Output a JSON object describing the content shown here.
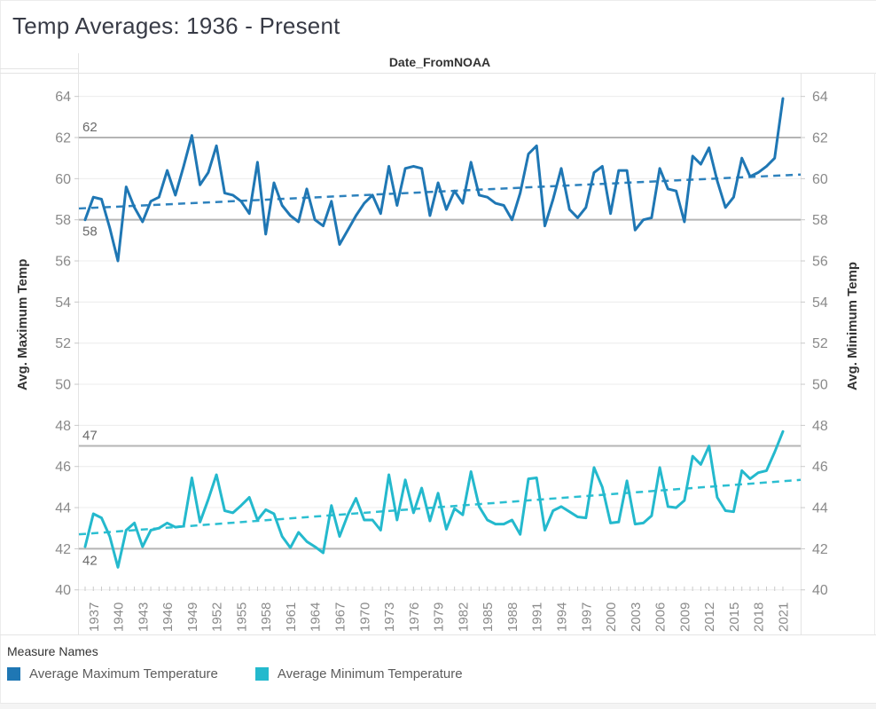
{
  "title": "Temp Averages: 1936 - Present",
  "column_header": "Date_FromNOAA",
  "axes": {
    "left_title": "Avg. Maximum Temp",
    "right_title": "Avg. Minimum Temp",
    "y_ticks": [
      64,
      62,
      60,
      58,
      56,
      54,
      52,
      50,
      48,
      46,
      44,
      42,
      40
    ],
    "x_tick_years": [
      1937,
      1940,
      1943,
      1946,
      1949,
      1952,
      1955,
      1958,
      1961,
      1964,
      1967,
      1970,
      1973,
      1976,
      1979,
      1982,
      1985,
      1988,
      1991,
      1994,
      1997,
      2000,
      2003,
      2006,
      2009,
      2012,
      2015,
      2018,
      2021
    ]
  },
  "reference_lines": [
    {
      "label": "62",
      "value": 62,
      "label_position": "above",
      "color": "#b5b5b5"
    },
    {
      "label": "58",
      "value": 58,
      "label_position": "below",
      "color": "#b5b5b5"
    },
    {
      "label": "47",
      "value": 47,
      "label_position": "above",
      "color": "#b5b5b5"
    },
    {
      "label": "42",
      "value": 42,
      "label_position": "below",
      "color": "#b5b5b5"
    }
  ],
  "legend": {
    "title": "Measure Names",
    "items": [
      {
        "label": "Average Maximum Temperature",
        "color": "#1f77b4"
      },
      {
        "label": "Average Minimum Temperature",
        "color": "#24b9cd"
      }
    ]
  },
  "chart_data": {
    "type": "line",
    "title": "Temp Averages: 1936 - Present",
    "xlabel": "Date_FromNOAA",
    "ylabel_left": "Avg. Maximum Temp",
    "ylabel_right": "Avg. Minimum Temp",
    "ylim": [
      40,
      64.7
    ],
    "x_tick_interval": 3,
    "grid": "horizontal",
    "legend_position": "bottom",
    "x": [
      1936,
      1937,
      1938,
      1939,
      1940,
      1941,
      1942,
      1943,
      1944,
      1945,
      1946,
      1947,
      1948,
      1949,
      1950,
      1951,
      1952,
      1953,
      1954,
      1955,
      1956,
      1957,
      1958,
      1959,
      1960,
      1961,
      1962,
      1963,
      1964,
      1965,
      1966,
      1967,
      1968,
      1969,
      1970,
      1971,
      1972,
      1973,
      1974,
      1975,
      1976,
      1977,
      1978,
      1979,
      1980,
      1981,
      1982,
      1983,
      1984,
      1985,
      1986,
      1987,
      1988,
      1989,
      1990,
      1991,
      1992,
      1993,
      1994,
      1995,
      1996,
      1997,
      1998,
      1999,
      2000,
      2001,
      2002,
      2003,
      2004,
      2005,
      2006,
      2007,
      2008,
      2009,
      2010,
      2011,
      2012,
      2013,
      2014,
      2015,
      2016,
      2017,
      2018,
      2019,
      2020,
      2021
    ],
    "series": [
      {
        "name": "Average Maximum Temperature",
        "axis": "left",
        "color": "#1f77b4",
        "values": [
          58.0,
          59.1,
          59.0,
          57.6,
          56.0,
          59.6,
          58.6,
          57.9,
          58.9,
          59.1,
          60.4,
          59.2,
          60.6,
          62.1,
          59.7,
          60.3,
          61.6,
          59.3,
          59.2,
          58.9,
          58.3,
          60.8,
          57.3,
          59.8,
          58.7,
          58.2,
          57.9,
          59.5,
          58.0,
          57.7,
          58.9,
          56.8,
          57.5,
          58.2,
          58.8,
          59.2,
          58.3,
          60.6,
          58.7,
          60.5,
          60.6,
          60.5,
          58.2,
          59.8,
          58.5,
          59.4,
          58.8,
          60.8,
          59.2,
          59.1,
          58.8,
          58.7,
          58.0,
          59.3,
          61.2,
          61.6,
          57.7,
          59.0,
          60.5,
          58.5,
          58.1,
          58.6,
          60.3,
          60.6,
          58.3,
          60.4,
          60.4,
          57.5,
          58.0,
          58.1,
          60.5,
          59.5,
          59.4,
          57.9,
          61.1,
          60.7,
          61.5,
          59.9,
          58.6,
          59.1,
          61.0,
          60.1,
          60.3,
          60.6,
          61.0,
          63.9
        ]
      },
      {
        "name": "Average Minimum Temperature",
        "axis": "right",
        "color": "#24b9cd",
        "values": [
          42.1,
          43.7,
          43.5,
          42.6,
          41.1,
          42.9,
          43.25,
          42.1,
          42.9,
          43.0,
          43.25,
          43.05,
          43.1,
          45.45,
          43.3,
          44.4,
          45.6,
          43.85,
          43.75,
          44.1,
          44.5,
          43.4,
          43.9,
          43.7,
          42.6,
          42.05,
          42.8,
          42.35,
          42.1,
          41.8,
          44.1,
          42.6,
          43.65,
          44.45,
          43.4,
          43.4,
          42.9,
          45.6,
          43.4,
          45.35,
          43.75,
          44.95,
          43.35,
          44.7,
          42.95,
          43.95,
          43.65,
          45.75,
          44.05,
          43.4,
          43.2,
          43.2,
          43.4,
          42.7,
          45.4,
          45.45,
          42.9,
          43.85,
          44.05,
          43.8,
          43.55,
          43.5,
          45.95,
          45.0,
          43.25,
          43.3,
          45.3,
          43.2,
          43.25,
          43.6,
          45.95,
          44.05,
          44.0,
          44.35,
          46.5,
          46.1,
          47.0,
          44.5,
          43.85,
          43.8,
          45.8,
          45.4,
          45.7,
          45.8,
          46.7,
          47.7
        ]
      }
    ],
    "trend_lines": [
      {
        "series": "Average Maximum Temperature",
        "style": "dashed",
        "start": 58.55,
        "end": 60.2,
        "color": "#2e82bd"
      },
      {
        "series": "Average Minimum Temperature",
        "style": "dashed",
        "start": 42.7,
        "end": 45.35,
        "color": "#2cbfd1"
      }
    ]
  }
}
